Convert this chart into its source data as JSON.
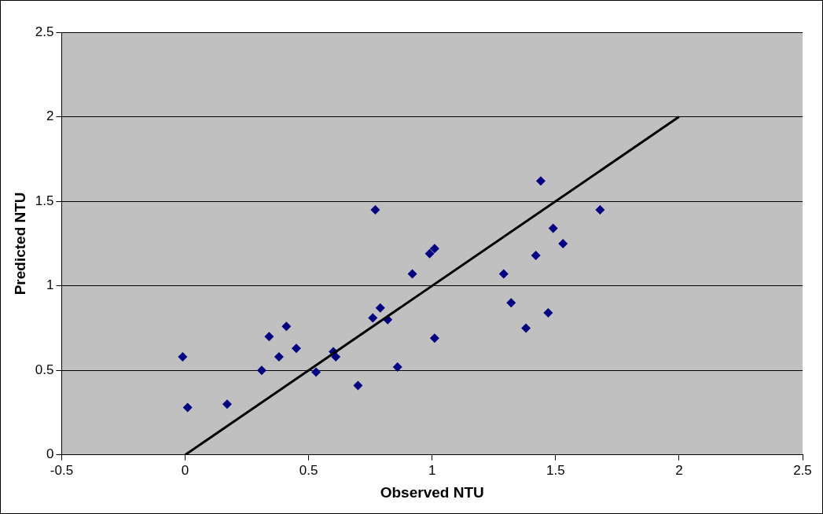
{
  "chart_data": {
    "type": "scatter",
    "xlabel": "Observed NTU",
    "ylabel": "Predicted NTU",
    "xlim": [
      -0.5,
      2.5
    ],
    "xticks": [
      -0.5,
      0,
      0.5,
      1,
      1.5,
      2,
      2.5
    ],
    "ylim": [
      0,
      2.5
    ],
    "yticks": [
      0,
      0.5,
      1,
      1.5,
      2,
      2.5
    ],
    "grid": "y",
    "legend": false,
    "marker": "diamond",
    "series": [
      {
        "color": "#000080",
        "x": [
          -0.01,
          0.01,
          0.17,
          0.31,
          0.34,
          0.38,
          0.41,
          0.45,
          0.53,
          0.6,
          0.61,
          0.7,
          0.76,
          0.77,
          0.79,
          0.82,
          0.86,
          0.92,
          0.99,
          1.01,
          1.01,
          1.29,
          1.32,
          1.38,
          1.42,
          1.44,
          1.47,
          1.49,
          1.53,
          1.68
        ],
        "values": [
          0.58,
          0.28,
          0.3,
          0.5,
          0.7,
          0.58,
          0.76,
          0.63,
          0.49,
          0.61,
          0.58,
          0.41,
          0.81,
          1.45,
          0.87,
          0.8,
          0.52,
          1.07,
          1.19,
          1.22,
          0.69,
          1.07,
          0.9,
          0.75,
          1.18,
          1.62,
          0.84,
          1.34,
          1.25,
          1.45
        ]
      },
      {
        "type": "line",
        "color": "#000000",
        "x": [
          0,
          2
        ],
        "values": [
          0,
          2
        ],
        "marker": "none"
      }
    ]
  }
}
